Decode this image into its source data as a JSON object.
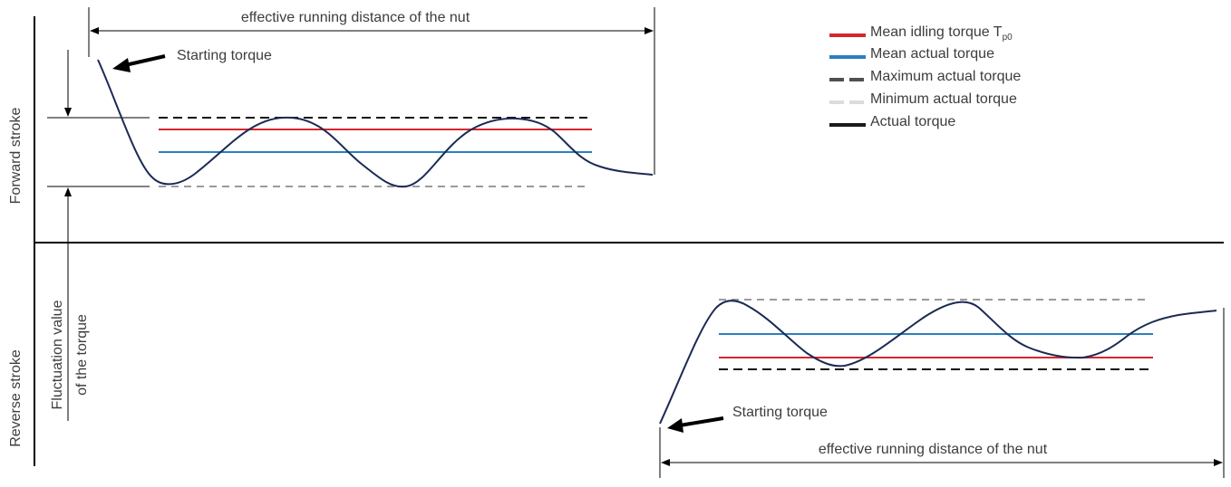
{
  "diagram": {
    "forward_label": "Forward stroke",
    "reverse_label": "Reverse stroke",
    "fluctuation_label_line1": "Fluctuation value",
    "fluctuation_label_line2": "of the torque",
    "forward_starting_label": "Starting torque",
    "reverse_starting_label": "Starting torque",
    "forward_distance_label": "effective running distance of the nut",
    "reverse_distance_label": "effective running distance of the nut"
  },
  "legend": {
    "items": [
      {
        "label": "Mean idling torque T",
        "subscript": "p0",
        "color": "#d7262e",
        "style": "solid"
      },
      {
        "label": "Mean actual torque",
        "color": "#2a7fc0",
        "style": "solid"
      },
      {
        "label": "Maximum actual torque",
        "color": "#505050",
        "style": "dashed"
      },
      {
        "label": "Minimum actual torque",
        "color": "#dcdcdc",
        "style": "dashed"
      },
      {
        "label": "Actual torque",
        "color": "#1a1a1a",
        "style": "solid"
      }
    ]
  },
  "colors": {
    "curve": "#1c2a55",
    "mean_idling": "#d7262e",
    "mean_actual": "#2a7fc0",
    "max_line": "#111111",
    "min_line": "#9a9a9a",
    "axis": "#000000",
    "text": "#3d3d3d"
  }
}
